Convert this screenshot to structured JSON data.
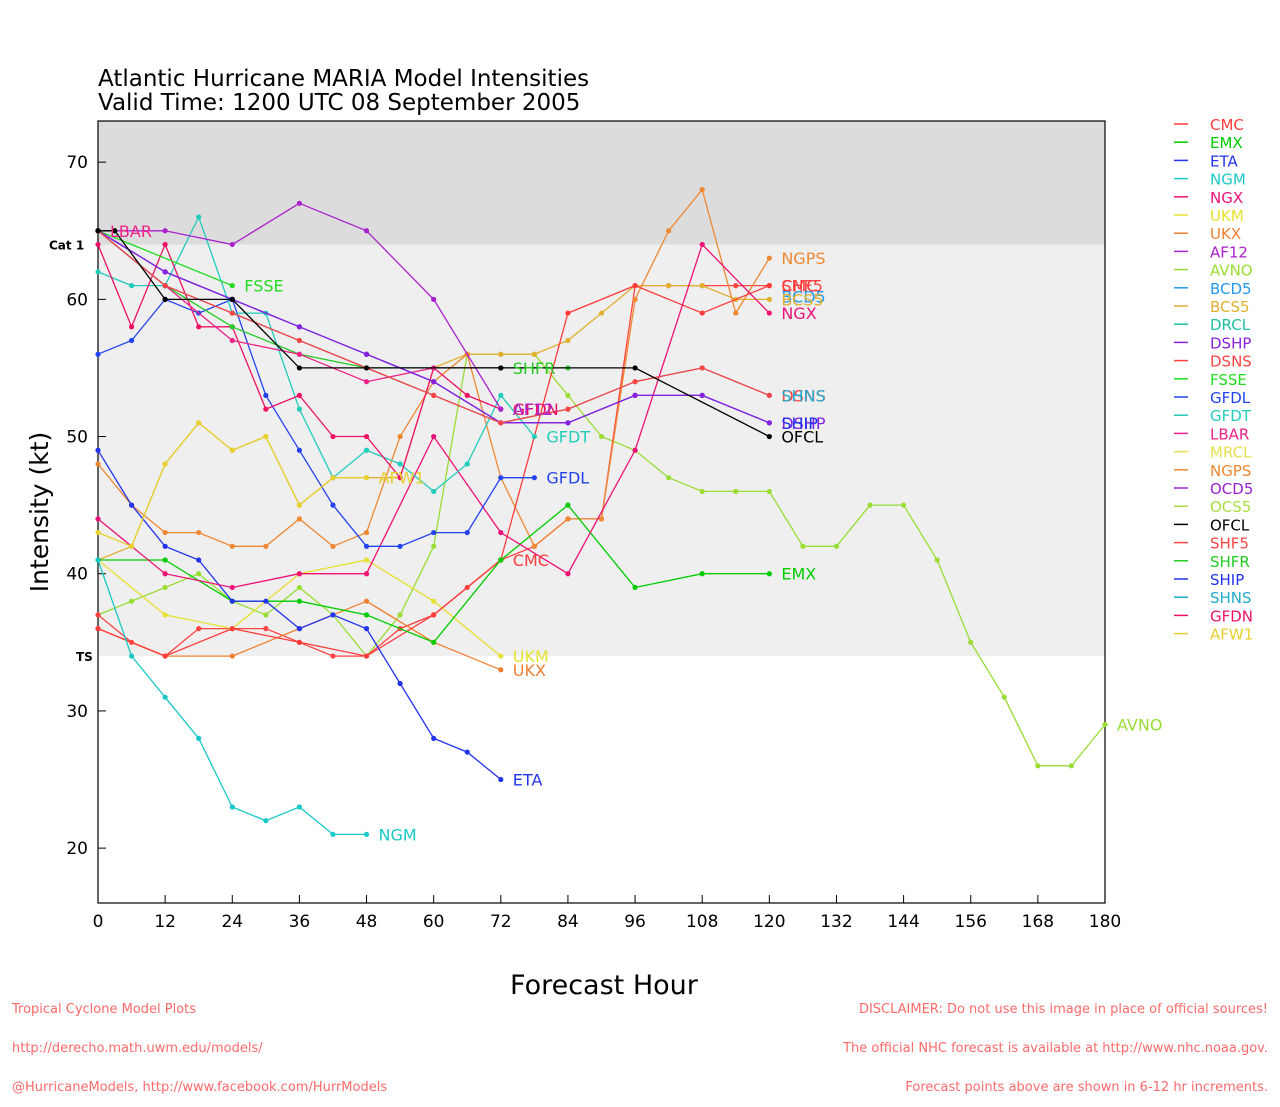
{
  "title_line1": "Atlantic Hurricane MARIA Model Intensities",
  "title_line2": "Valid Time: 1200 UTC 08 September 2005",
  "footer_left": [
    "Tropical Cyclone Model Plots",
    "http://derecho.math.uwm.edu/models/",
    "@HurricaneModels, http://www.facebook.com/HurrModels"
  ],
  "footer_right": [
    "DISCLAIMER: Do not use this image in place of official sources!",
    "The official NHC forecast is available at http://www.nhc.noaa.gov.",
    "Forecast points above are shown in 6-12 hr increments."
  ],
  "chart_data": {
    "type": "line",
    "xlabel": "Forecast Hour",
    "ylabel": "Intensity (kt)",
    "xlim": [
      0,
      180
    ],
    "ylim": [
      16,
      73
    ],
    "xticks": [
      0,
      12,
      24,
      36,
      48,
      60,
      72,
      84,
      96,
      108,
      120,
      132,
      144,
      156,
      168,
      180
    ],
    "yticks": [
      20,
      30,
      40,
      50,
      60,
      70
    ],
    "bands": [
      {
        "from": 34,
        "to": 64,
        "color": "#efefef"
      },
      {
        "from": 64,
        "to": 73,
        "color": "#dcdcdc"
      }
    ],
    "thresholds": [
      {
        "label": "Cat 1",
        "y": 64
      },
      {
        "label": "TS",
        "y": 34
      }
    ],
    "legend_position": "right",
    "legend": [
      {
        "name": "CMC",
        "color": "#ff3b3b"
      },
      {
        "name": "EMX",
        "color": "#00cc00"
      },
      {
        "name": "ETA",
        "color": "#2233ee"
      },
      {
        "name": "NGM",
        "color": "#18c8c8"
      },
      {
        "name": "NGX",
        "color": "#ee1177"
      },
      {
        "name": "UKM",
        "color": "#e6e030"
      },
      {
        "name": "UKX",
        "color": "#f08030"
      },
      {
        "name": "AF12",
        "color": "#aa22cc"
      },
      {
        "name": "AVNO",
        "color": "#99dd33"
      },
      {
        "name": "BCD5",
        "color": "#2299ee"
      },
      {
        "name": "BCS5",
        "color": "#e0b030"
      },
      {
        "name": "DRCL",
        "color": "#20c0a0"
      },
      {
        "name": "DSHP",
        "color": "#8822dd"
      },
      {
        "name": "DSNS",
        "color": "#ff4444"
      },
      {
        "name": "FSSE",
        "color": "#22dd22"
      },
      {
        "name": "GFDL",
        "color": "#2244ee"
      },
      {
        "name": "GFDT",
        "color": "#22ccbb"
      },
      {
        "name": "LBAR",
        "color": "#ee2288"
      },
      {
        "name": "MRCL",
        "color": "#e8e050"
      },
      {
        "name": "NGPS",
        "color": "#ee8833"
      },
      {
        "name": "OCD5",
        "color": "#9922cc"
      },
      {
        "name": "OCS5",
        "color": "#aadd44"
      },
      {
        "name": "OFCL",
        "color": "#000000"
      },
      {
        "name": "SHF5",
        "color": "#ff4444"
      },
      {
        "name": "SHFR",
        "color": "#22cc22"
      },
      {
        "name": "SHIP",
        "color": "#2233ee"
      },
      {
        "name": "SHNS",
        "color": "#22aacc"
      },
      {
        "name": "GFDN",
        "color": "#ee1166"
      },
      {
        "name": "AFW1",
        "color": "#e8d030"
      }
    ],
    "series": [
      {
        "name": "AVNO",
        "color": "#99dd33",
        "label": "AVNO",
        "x": [
          0,
          6,
          12,
          18,
          24,
          30,
          36,
          42,
          48,
          54,
          60,
          66,
          72,
          78,
          84,
          90,
          96,
          102,
          108,
          114,
          120,
          126,
          132,
          138,
          144,
          150,
          156,
          162,
          168,
          174,
          180
        ],
        "y": [
          37,
          38,
          39,
          40,
          38,
          37,
          39,
          37,
          34,
          37,
          42,
          56,
          56,
          56,
          53,
          50,
          49,
          47,
          46,
          46,
          46,
          42,
          42,
          45,
          45,
          41,
          35,
          31,
          26,
          26,
          29
        ]
      },
      {
        "name": "SHF5",
        "color": "#ff4444",
        "label": "SHF5",
        "x": [
          0,
          6,
          12,
          18,
          24,
          30,
          36,
          42,
          48,
          54,
          60,
          66,
          72,
          78,
          84,
          90,
          96,
          102,
          108,
          114,
          120
        ],
        "y": [
          37,
          35,
          34,
          36,
          36,
          36,
          35,
          34,
          34,
          36,
          37,
          39,
          41,
          42,
          44,
          44,
          61,
          61,
          61,
          61,
          61
        ]
      },
      {
        "name": "BCS5",
        "color": "#e0b030",
        "label": "BCS5",
        "x": [
          0,
          6,
          12,
          18,
          24,
          30,
          36,
          42,
          48,
          54,
          60,
          66,
          72,
          78,
          84,
          90,
          96,
          102,
          108,
          114,
          120
        ],
        "y": [
          41,
          42,
          48,
          51,
          49,
          50,
          45,
          47,
          47,
          47,
          55,
          56,
          56,
          56,
          57,
          59,
          61,
          61,
          61,
          60,
          60
        ]
      },
      {
        "name": "NGPS",
        "color": "#ee8833",
        "label": "NGPS",
        "x": [
          0,
          6,
          12,
          18,
          24,
          30,
          36,
          42,
          48,
          54,
          60,
          66,
          72,
          78,
          84,
          90,
          96,
          102,
          108,
          114,
          120
        ],
        "y": [
          48,
          45,
          43,
          43,
          42,
          42,
          44,
          42,
          43,
          50,
          54,
          56,
          47,
          42,
          44,
          44,
          60,
          65,
          68,
          59,
          63
        ]
      },
      {
        "name": "UKX",
        "color": "#f08030",
        "label": "UKX",
        "x": [
          0,
          12,
          24,
          36,
          48,
          60,
          72
        ],
        "y": [
          36,
          34,
          34,
          36,
          38,
          35,
          33
        ]
      },
      {
        "name": "UKM",
        "color": "#e6e030",
        "label": "UKM",
        "x": [
          0,
          12,
          24,
          36,
          48,
          60,
          72
        ],
        "y": [
          41,
          37,
          36,
          40,
          41,
          38,
          34
        ]
      },
      {
        "name": "CMC",
        "color": "#ff3b3b",
        "label": "CMC",
        "x": [
          0,
          12,
          24,
          36,
          48,
          60,
          72,
          84,
          96,
          108,
          120
        ],
        "y": [
          36,
          34,
          36,
          35,
          34,
          37,
          41,
          59,
          61,
          59,
          61
        ]
      },
      {
        "name": "EMX",
        "color": "#00cc00",
        "label": "EMX",
        "x": [
          0,
          12,
          24,
          36,
          48,
          60,
          72,
          84,
          96,
          108,
          120
        ],
        "y": [
          41,
          41,
          38,
          38,
          37,
          35,
          41,
          45,
          39,
          40,
          40
        ]
      },
      {
        "name": "ETA",
        "color": "#2233ee",
        "label": "ETA",
        "x": [
          0,
          6,
          12,
          18,
          24,
          30,
          36,
          42,
          48,
          54,
          60,
          66,
          72
        ],
        "y": [
          49,
          45,
          42,
          41,
          38,
          38,
          36,
          37,
          36,
          32,
          28,
          27,
          25
        ]
      },
      {
        "name": "NGM",
        "color": "#18c8c8",
        "label": "NGM",
        "x": [
          0,
          6,
          12,
          18,
          24,
          30,
          36,
          42,
          48
        ],
        "y": [
          41,
          34,
          31,
          28,
          23,
          22,
          23,
          21,
          21
        ]
      },
      {
        "name": "NGX",
        "color": "#ee1177",
        "label": "NGX",
        "x": [
          0,
          12,
          24,
          36,
          48,
          60,
          72,
          84,
          96,
          108,
          120
        ],
        "y": [
          44,
          40,
          39,
          40,
          40,
          50,
          43,
          40,
          49,
          64,
          59
        ]
      },
      {
        "name": "GFDL",
        "color": "#2244ee",
        "label": "GFDL",
        "x": [
          0,
          6,
          12,
          18,
          24,
          30,
          36,
          42,
          48,
          54,
          60,
          66,
          72,
          78
        ],
        "y": [
          56,
          57,
          60,
          59,
          60,
          53,
          49,
          45,
          42,
          42,
          43,
          43,
          47,
          47
        ]
      },
      {
        "name": "GFDT",
        "color": "#22ccbb",
        "label": "GFDT",
        "x": [
          0,
          6,
          12,
          18,
          24,
          30,
          36,
          42,
          48,
          54,
          60,
          66,
          72,
          78
        ],
        "y": [
          62,
          61,
          61,
          66,
          59,
          59,
          52,
          47,
          49,
          48,
          46,
          48,
          53,
          50
        ]
      },
      {
        "name": "GFDN",
        "color": "#ee1166",
        "label": "GFDN",
        "x": [
          0,
          6,
          12,
          18,
          24,
          30,
          36,
          42,
          48,
          54,
          60,
          66,
          72
        ],
        "y": [
          64,
          58,
          64,
          58,
          58,
          52,
          53,
          50,
          50,
          47,
          55,
          53,
          52
        ]
      },
      {
        "name": "AFW1",
        "color": "#e8d030",
        "label": "AFW1",
        "x": [
          0,
          6,
          12,
          18,
          24,
          30,
          36,
          42,
          48
        ],
        "y": [
          43,
          42,
          48,
          51,
          49,
          50,
          45,
          47,
          47
        ]
      },
      {
        "name": "AF12",
        "color": "#aa22cc",
        "label": "AF12",
        "x": [
          0,
          12,
          24,
          36,
          48,
          60,
          72
        ],
        "y": [
          65,
          65,
          64,
          67,
          65,
          60,
          52
        ]
      },
      {
        "name": "FSSE",
        "color": "#22dd22",
        "label": "FSSE",
        "x": [
          0,
          24
        ],
        "y": [
          65,
          61
        ]
      },
      {
        "name": "SHFR",
        "color": "#22cc22",
        "label": "SHFR",
        "x": [
          0,
          12,
          24,
          36,
          48,
          60,
          72,
          84
        ],
        "y": [
          65,
          61,
          58,
          56,
          55,
          55,
          55,
          55
        ]
      },
      {
        "name": "LBAR",
        "color": "#ee2288",
        "label": "LBAR",
        "x": [
          0,
          12,
          24,
          36,
          48,
          60,
          72
        ],
        "y": [
          65,
          61,
          57,
          56,
          54,
          55,
          55
        ]
      },
      {
        "name": "SHIP",
        "color": "#2233ee",
        "label": "SHIP",
        "x": [
          0,
          12,
          24,
          36,
          48,
          60,
          72,
          84,
          96,
          108,
          120
        ],
        "y": [
          65,
          62,
          60,
          58,
          56,
          54,
          51,
          51,
          53,
          53,
          51
        ]
      },
      {
        "name": "DSHP",
        "color": "#8822dd",
        "label": "DSHP",
        "x": [
          0,
          12,
          24,
          36,
          48,
          60,
          72,
          84,
          96,
          108,
          120
        ],
        "y": [
          65,
          62,
          60,
          58,
          56,
          54,
          51,
          51,
          53,
          53,
          51
        ]
      },
      {
        "name": "SHNS",
        "color": "#22aacc",
        "label": "SHNS",
        "x": [
          0,
          12,
          24,
          36,
          48,
          60,
          72,
          84,
          96,
          108,
          120
        ],
        "y": [
          65,
          61,
          59,
          57,
          55,
          53,
          51,
          52,
          54,
          55,
          53
        ]
      },
      {
        "name": "DSNS",
        "color": "#ff4444",
        "label": "DSNS",
        "x": [
          0,
          12,
          24,
          36,
          48,
          60,
          72,
          84,
          96,
          108,
          120
        ],
        "y": [
          65,
          61,
          59,
          57,
          55,
          53,
          51,
          52,
          54,
          55,
          53
        ]
      },
      {
        "name": "OFCL",
        "color": "#000000",
        "label": "OFCL",
        "x": [
          0,
          3,
          12,
          24,
          36,
          48,
          72,
          96,
          120
        ],
        "y": [
          65,
          65,
          60,
          60,
          55,
          55,
          55,
          55,
          50
        ]
      }
    ],
    "end_labels": [
      {
        "text": "NGPS",
        "color": "#ee8833",
        "x": 120,
        "y": 63
      },
      {
        "text": "SHF5",
        "color": "#ff4444",
        "x": 120,
        "y": 61
      },
      {
        "text": "CMC",
        "color": "#ff3b3b",
        "x": 120,
        "y": 61
      },
      {
        "text": "BCD5",
        "color": "#2299ee",
        "x": 120,
        "y": 60.2
      },
      {
        "text": "BCS5",
        "color": "#e0b030",
        "x": 120,
        "y": 60
      },
      {
        "text": "NGX",
        "color": "#ee1177",
        "x": 120,
        "y": 59
      },
      {
        "text": "DSNS",
        "color": "#ff4444",
        "x": 120,
        "y": 53
      },
      {
        "text": "SHNS",
        "color": "#22aacc",
        "x": 120,
        "y": 53
      },
      {
        "text": "DSHP",
        "color": "#8822dd",
        "x": 120,
        "y": 51
      },
      {
        "text": "SHIP",
        "color": "#2233ee",
        "x": 120,
        "y": 51
      },
      {
        "text": "OFCL",
        "color": "#000000",
        "x": 120,
        "y": 50
      },
      {
        "text": "EMX",
        "color": "#00cc00",
        "x": 120,
        "y": 40
      },
      {
        "text": "AVNO",
        "color": "#99dd33",
        "x": 180,
        "y": 29
      },
      {
        "text": "SHFR",
        "color": "#22cc22",
        "x": 72,
        "y": 55
      },
      {
        "text": "GFDN",
        "color": "#ee1166",
        "x": 72,
        "y": 52
      },
      {
        "text": "AF12",
        "color": "#aa22cc",
        "x": 72,
        "y": 52
      },
      {
        "text": "GFDT",
        "color": "#22ccbb",
        "x": 78,
        "y": 50
      },
      {
        "text": "GFDL",
        "color": "#2244ee",
        "x": 78,
        "y": 47
      },
      {
        "text": "CMC",
        "color": "#ff3b3b",
        "x": 72,
        "y": 41
      },
      {
        "text": "UKM",
        "color": "#e6e030",
        "x": 72,
        "y": 34
      },
      {
        "text": "UKX",
        "color": "#f08030",
        "x": 72,
        "y": 33
      },
      {
        "text": "ETA",
        "color": "#2233ee",
        "x": 72,
        "y": 25
      },
      {
        "text": "NGM",
        "color": "#18c8c8",
        "x": 48,
        "y": 21
      },
      {
        "text": "AFW1",
        "color": "#e8d030",
        "x": 48,
        "y": 47
      },
      {
        "text": "FSSE",
        "color": "#22dd22",
        "x": 24,
        "y": 61
      },
      {
        "text": "LBAR",
        "color": "#ee2288",
        "x": 0,
        "y": 65
      }
    ]
  }
}
